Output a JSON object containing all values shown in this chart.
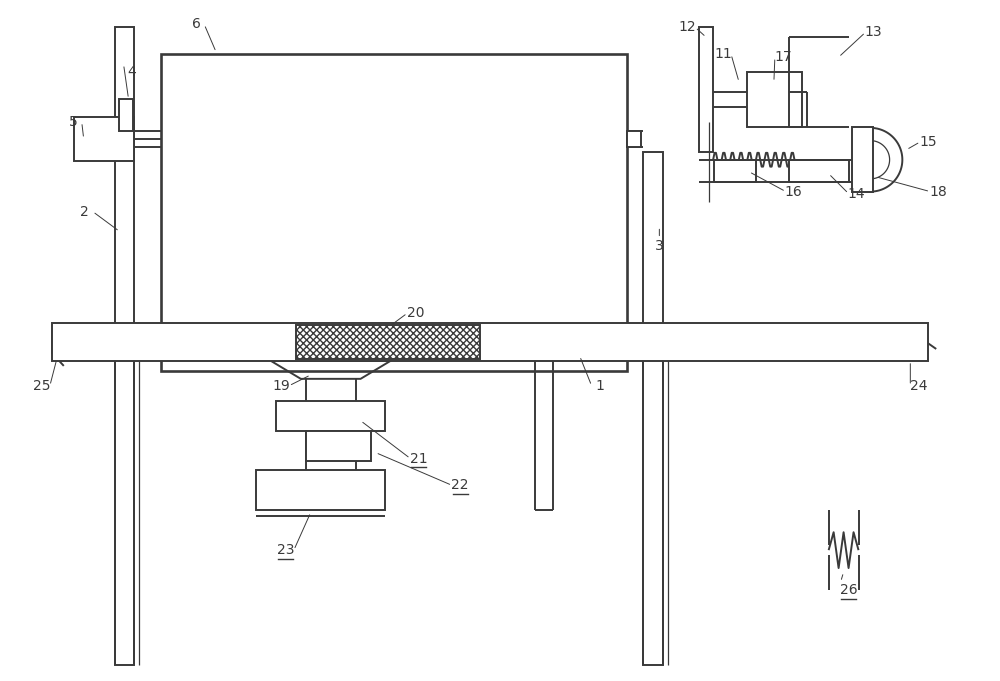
{
  "bg_color": "#ffffff",
  "lc": "#3a3a3a",
  "lw": 1.4,
  "tlw": 0.9,
  "fig_w": 10.0,
  "fig_h": 6.81
}
